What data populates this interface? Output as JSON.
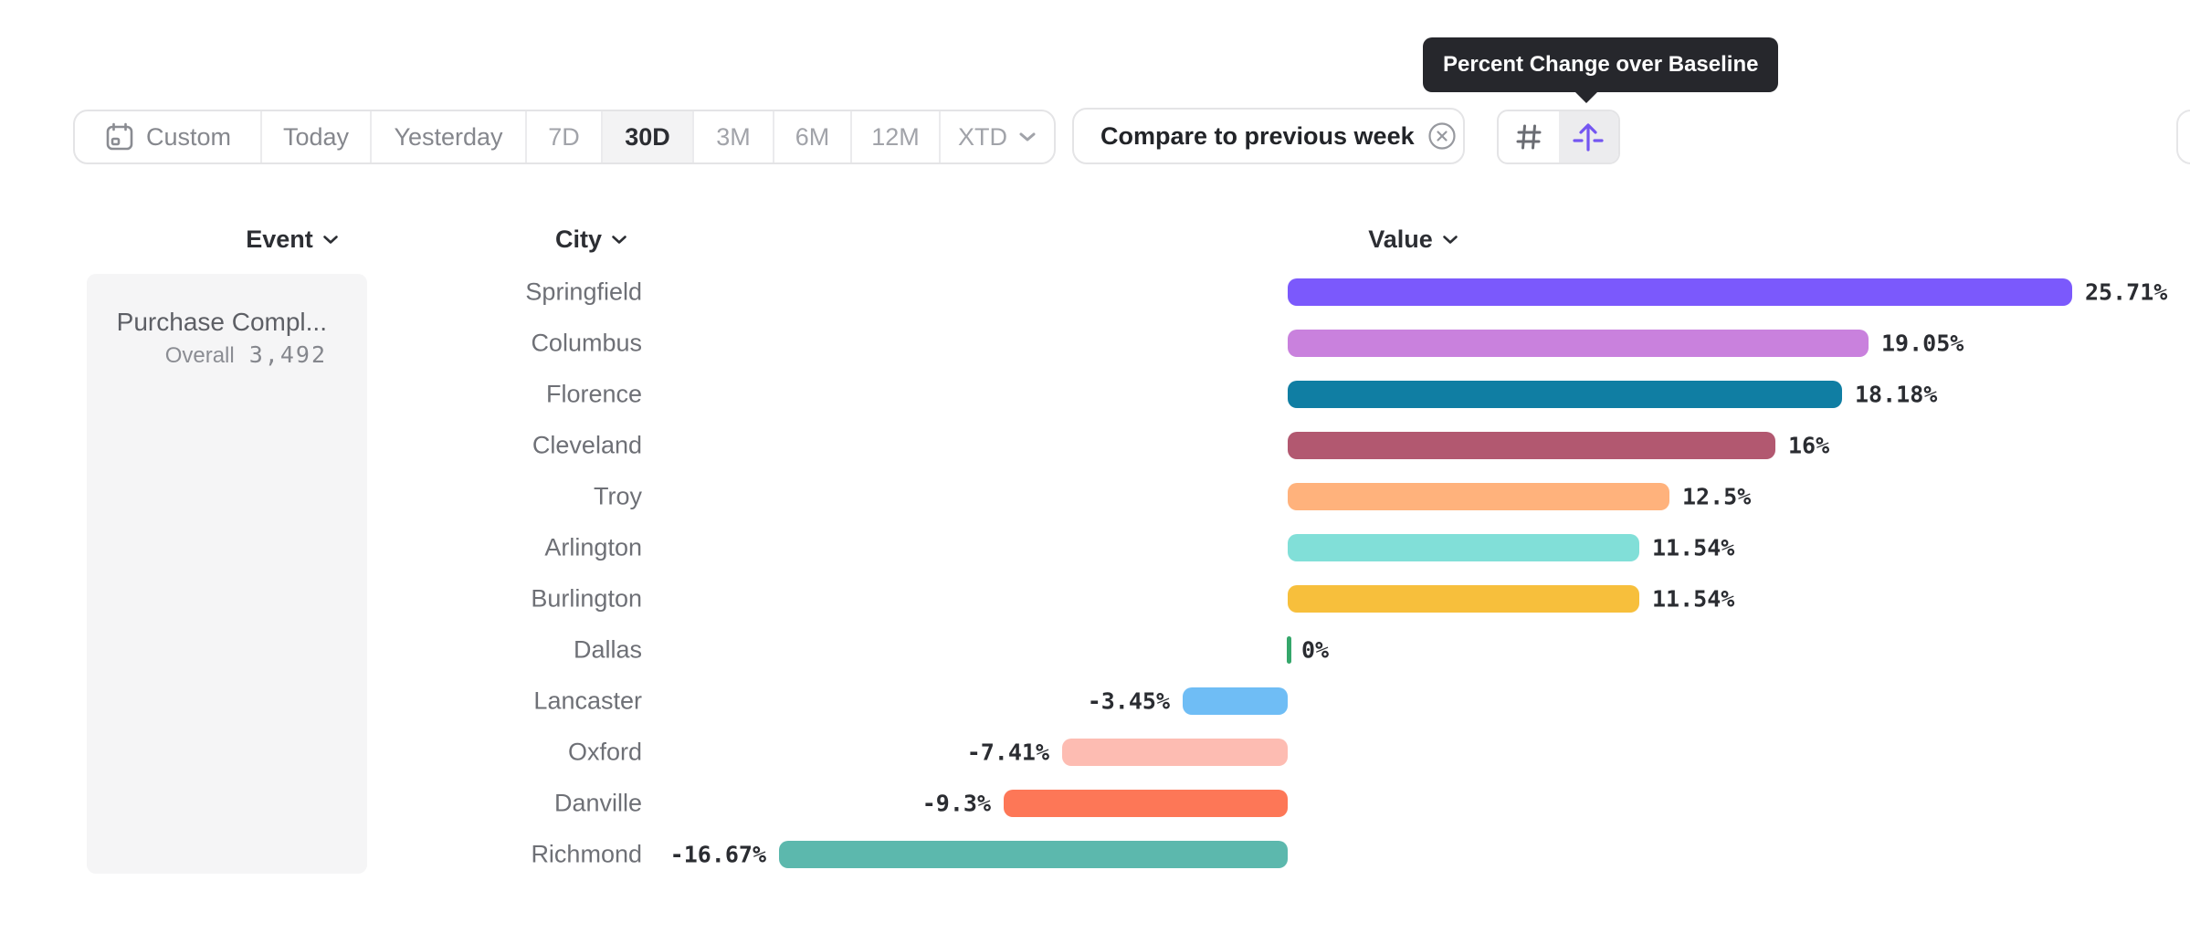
{
  "tooltip": {
    "text": "Percent Change over Baseline",
    "bg": "#26272c"
  },
  "toolbar": {
    "items": [
      {
        "label": "Custom",
        "icon": "calendar-icon",
        "selected": false
      },
      {
        "label": "Today",
        "selected": false
      },
      {
        "label": "Yesterday",
        "selected": false
      },
      {
        "label": "7D",
        "selected": false
      },
      {
        "label": "30D",
        "selected": true
      },
      {
        "label": "3M",
        "selected": false
      },
      {
        "label": "6M",
        "selected": false
      },
      {
        "label": "12M",
        "selected": false
      },
      {
        "label": "XTD",
        "icon": "chevron-down-icon",
        "selected": false
      }
    ]
  },
  "compare_chip": {
    "label": "Compare to previous week",
    "icon": "circle-x-icon"
  },
  "view_toggle": {
    "options": [
      {
        "icon": "hash-icon",
        "selected": false
      },
      {
        "icon": "arrow-up-from-baseline-icon",
        "selected": true
      }
    ],
    "accent": "#7456f1"
  },
  "columns": [
    {
      "label": "Event"
    },
    {
      "label": "City"
    },
    {
      "label": "Value"
    }
  ],
  "event_panel": {
    "title": "Purchase Compl...",
    "overall_label": "Overall",
    "overall_value": "3,492"
  },
  "chart_data": {
    "type": "bar",
    "orientation": "horizontal",
    "unit": "percent",
    "baseline": 0,
    "xlim": [
      -16.67,
      25.71
    ],
    "categories": [
      "Springfield",
      "Columbus",
      "Florence",
      "Cleveland",
      "Troy",
      "Arlington",
      "Burlington",
      "Dallas",
      "Lancaster",
      "Oxford",
      "Danville",
      "Richmond"
    ],
    "values": [
      25.71,
      19.05,
      18.18,
      16,
      12.5,
      11.54,
      11.54,
      0,
      -3.45,
      -7.41,
      -9.3,
      -16.67
    ],
    "labels": [
      "25.71%",
      "19.05%",
      "18.18%",
      "16%",
      "12.5%",
      "11.54%",
      "11.54%",
      "0%",
      "-3.45%",
      "-7.41%",
      "-9.3%",
      "-16.67%"
    ],
    "colors": [
      "#7b59fc",
      "#c981dd",
      "#107ea3",
      "#b25870",
      "#ffb27c",
      "#81dfd8",
      "#f7bf3c",
      "#35a76b",
      "#6fbdf5",
      "#fdbcb2",
      "#fd7757",
      "#5cb8ad"
    ]
  }
}
